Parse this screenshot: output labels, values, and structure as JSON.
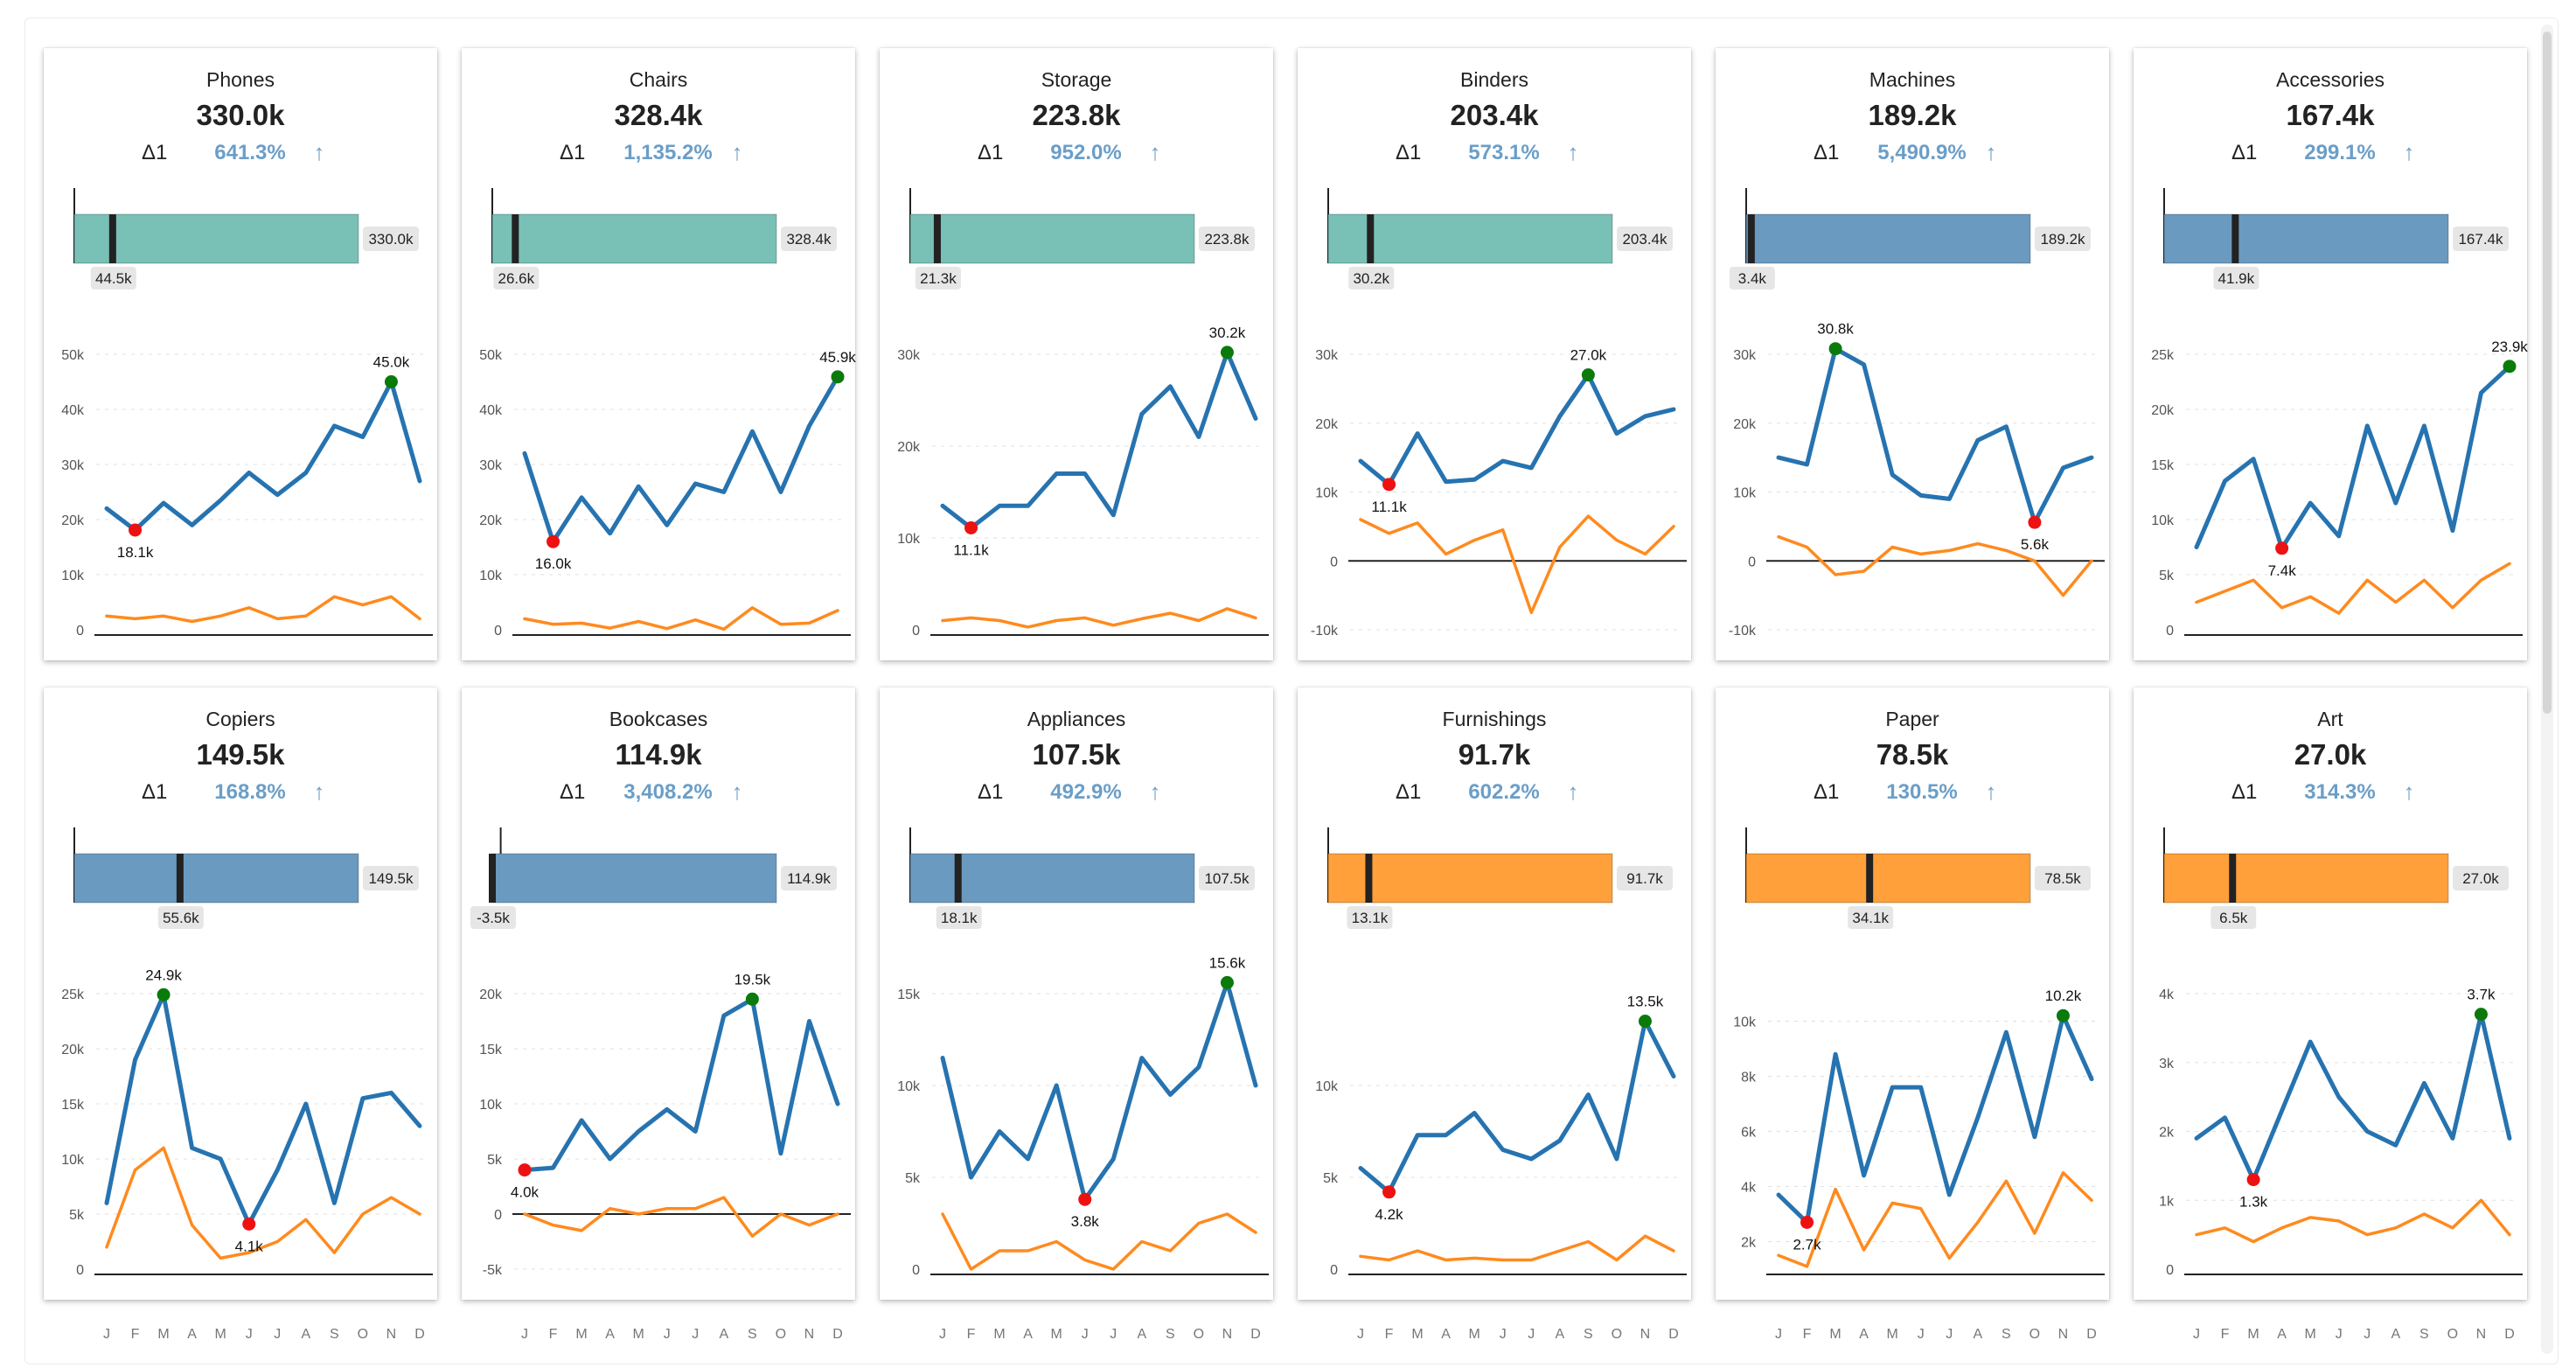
{
  "colors": {
    "teal": "#79c0b6",
    "blue": "#6b9ac0",
    "orange": "#ffa03a",
    "line_main": "#2673b0",
    "line_secondary": "#ff8a1e",
    "max_marker": "#0a7a0a",
    "min_marker": "#ee1111",
    "delta_text": "#6a9ec8"
  },
  "months": [
    "J",
    "F",
    "M",
    "A",
    "M",
    "J",
    "J",
    "A",
    "S",
    "O",
    "N",
    "D"
  ],
  "delta_label": "Δ1",
  "arrow_icon": "arrow-up-icon",
  "chart_data": [
    {
      "type": "line",
      "title": "Phones",
      "value": "330.0k",
      "delta_pct": "641.3%",
      "bar": {
        "color": "teal",
        "start": 0,
        "end": 330.0,
        "end_label": "330.0k",
        "marker": 44.5,
        "marker_label": "44.5k"
      },
      "ylim": [
        0,
        50
      ],
      "yticks": [
        0,
        10,
        20,
        30,
        40,
        50
      ],
      "ytick_labels": [
        "0",
        "10k",
        "20k",
        "30k",
        "40k",
        "50k"
      ],
      "series": [
        {
          "values": [
            22,
            18.1,
            23,
            19,
            23.5,
            28.5,
            24.5,
            28.5,
            37,
            35,
            45.0,
            27
          ]
        },
        {
          "values": [
            2.5,
            2,
            2.5,
            1.5,
            2.5,
            4,
            2,
            2.5,
            6,
            4.5,
            6,
            2
          ]
        }
      ],
      "max": {
        "index": 10,
        "label": "45.0k"
      },
      "min": {
        "index": 1,
        "label": "18.1k"
      }
    },
    {
      "type": "line",
      "title": "Chairs",
      "value": "328.4k",
      "delta_pct": "1,135.2%",
      "bar": {
        "color": "teal",
        "start": 0,
        "end": 328.4,
        "end_label": "328.4k",
        "marker": 26.6,
        "marker_label": "26.6k"
      },
      "ylim": [
        0,
        50
      ],
      "yticks": [
        0,
        10,
        20,
        30,
        40,
        50
      ],
      "ytick_labels": [
        "0",
        "10k",
        "20k",
        "30k",
        "40k",
        "50k"
      ],
      "series": [
        {
          "values": [
            32,
            16.0,
            24,
            17.5,
            26,
            19,
            26.5,
            25,
            36,
            25,
            37,
            45.9
          ]
        },
        {
          "values": [
            2,
            1,
            1.2,
            0.3,
            1.5,
            0.2,
            1.8,
            0.1,
            4,
            1,
            1.2,
            3.5
          ]
        }
      ],
      "max": {
        "index": 11,
        "label": "45.9k"
      },
      "min": {
        "index": 1,
        "label": "16.0k"
      }
    },
    {
      "type": "line",
      "title": "Storage",
      "value": "223.8k",
      "delta_pct": "952.0%",
      "bar": {
        "color": "teal",
        "start": 0,
        "end": 223.8,
        "end_label": "223.8k",
        "marker": 21.3,
        "marker_label": "21.3k"
      },
      "ylim": [
        0,
        30
      ],
      "yticks": [
        0,
        10,
        20,
        30
      ],
      "ytick_labels": [
        "0",
        "10k",
        "20k",
        "30k"
      ],
      "series": [
        {
          "values": [
            13.5,
            11.1,
            13.5,
            13.5,
            17,
            17,
            12.5,
            23.5,
            26.5,
            21,
            30.2,
            23
          ]
        },
        {
          "values": [
            1,
            1.3,
            1,
            0.3,
            1,
            1.3,
            0.5,
            1.2,
            1.8,
            1,
            2.3,
            1.3
          ]
        }
      ],
      "max": {
        "index": 10,
        "label": "30.2k"
      },
      "min": {
        "index": 1,
        "label": "11.1k"
      }
    },
    {
      "type": "line",
      "title": "Binders",
      "value": "203.4k",
      "delta_pct": "573.1%",
      "bar": {
        "color": "teal",
        "start": 0,
        "end": 203.4,
        "end_label": "203.4k",
        "marker": 30.2,
        "marker_label": "30.2k"
      },
      "ylim": [
        -10,
        30
      ],
      "yticks": [
        -10,
        0,
        10,
        20,
        30
      ],
      "ytick_labels": [
        "-10k",
        "0",
        "10k",
        "20k",
        "30k"
      ],
      "series": [
        {
          "values": [
            14.5,
            11.1,
            18.5,
            11.5,
            11.8,
            14.5,
            13.5,
            21,
            27.0,
            18.5,
            21,
            22
          ]
        },
        {
          "values": [
            6,
            4,
            5.5,
            1,
            3,
            4.5,
            -7.5,
            2,
            6.5,
            3,
            1,
            5
          ]
        }
      ],
      "max": {
        "index": 8,
        "label": "27.0k"
      },
      "min": {
        "index": 1,
        "label": "11.1k"
      }
    },
    {
      "type": "line",
      "title": "Machines",
      "value": "189.2k",
      "delta_pct": "5,490.9%",
      "bar": {
        "color": "blue",
        "start": 0,
        "end": 189.2,
        "end_label": "189.2k",
        "marker": 3.4,
        "marker_label": "3.4k"
      },
      "ylim": [
        -10,
        30
      ],
      "yticks": [
        -10,
        0,
        10,
        20,
        30
      ],
      "ytick_labels": [
        "-10k",
        "0",
        "10k",
        "20k",
        "30k"
      ],
      "series": [
        {
          "values": [
            15,
            14,
            30.8,
            28.5,
            12.5,
            9.5,
            9,
            17.5,
            19.5,
            5.6,
            13.5,
            15
          ]
        },
        {
          "values": [
            3.5,
            2,
            -2,
            -1.5,
            2,
            1,
            1.5,
            2.5,
            1.5,
            0,
            -5,
            0
          ]
        }
      ],
      "max": {
        "index": 2,
        "label": "30.8k"
      },
      "min": {
        "index": 9,
        "label": "5.6k"
      }
    },
    {
      "type": "line",
      "title": "Accessories",
      "value": "167.4k",
      "delta_pct": "299.1%",
      "bar": {
        "color": "blue",
        "start": 0,
        "end": 167.4,
        "end_label": "167.4k",
        "marker": 41.9,
        "marker_label": "41.9k"
      },
      "ylim": [
        0,
        25
      ],
      "yticks": [
        0,
        5,
        10,
        15,
        20,
        25
      ],
      "ytick_labels": [
        "0",
        "5k",
        "10k",
        "15k",
        "20k",
        "25k"
      ],
      "series": [
        {
          "values": [
            7.5,
            13.5,
            15.5,
            7.4,
            11.5,
            8.5,
            18.5,
            11.5,
            18.5,
            9,
            21.5,
            23.9
          ]
        },
        {
          "values": [
            2.5,
            3.5,
            4.5,
            2,
            3,
            1.5,
            4.5,
            2.5,
            4.5,
            2,
            4.5,
            6
          ]
        }
      ],
      "max": {
        "index": 11,
        "label": "23.9k"
      },
      "min": {
        "index": 3,
        "label": "7.4k"
      }
    },
    {
      "type": "line",
      "title": "Copiers",
      "value": "149.5k",
      "delta_pct": "168.8%",
      "bar": {
        "color": "blue",
        "start": 0,
        "end": 149.5,
        "end_label": "149.5k",
        "marker": 55.6,
        "marker_label": "55.6k"
      },
      "ylim": [
        0,
        25
      ],
      "yticks": [
        0,
        5,
        10,
        15,
        20,
        25
      ],
      "ytick_labels": [
        "0",
        "5k",
        "10k",
        "15k",
        "20k",
        "25k"
      ],
      "series": [
        {
          "values": [
            6,
            19,
            24.9,
            11,
            10,
            4.1,
            9,
            15,
            6,
            15.5,
            16,
            13
          ]
        },
        {
          "values": [
            2,
            9,
            11,
            4,
            1,
            1.5,
            2.5,
            4.5,
            1.5,
            5,
            6.5,
            5
          ]
        }
      ],
      "max": {
        "index": 2,
        "label": "24.9k"
      },
      "min": {
        "index": 5,
        "label": "4.1k"
      }
    },
    {
      "type": "line",
      "title": "Bookcases",
      "value": "114.9k",
      "delta_pct": "3,408.2%",
      "bar": {
        "color": "blue",
        "start": -3.5,
        "end": 114.9,
        "end_label": "114.9k",
        "marker": -3.5,
        "marker_label": "-3.5k"
      },
      "ylim": [
        -5,
        20
      ],
      "yticks": [
        -5,
        0,
        5,
        10,
        15,
        20
      ],
      "ytick_labels": [
        "-5k",
        "0",
        "5k",
        "10k",
        "15k",
        "20k"
      ],
      "series": [
        {
          "values": [
            4.0,
            4.2,
            8.5,
            5,
            7.5,
            9.5,
            7.5,
            18,
            19.5,
            5.5,
            17.5,
            10
          ]
        },
        {
          "values": [
            0,
            -1,
            -1.5,
            0.5,
            0,
            0.5,
            0.5,
            1.5,
            -2,
            0,
            -1,
            0
          ]
        }
      ],
      "max": {
        "index": 8,
        "label": "19.5k"
      },
      "min": {
        "index": 0,
        "label": "4.0k"
      }
    },
    {
      "type": "line",
      "title": "Appliances",
      "value": "107.5k",
      "delta_pct": "492.9%",
      "bar": {
        "color": "blue",
        "start": 0,
        "end": 107.5,
        "end_label": "107.5k",
        "marker": 18.1,
        "marker_label": "18.1k"
      },
      "ylim": [
        0,
        15
      ],
      "yticks": [
        0,
        5,
        10,
        15
      ],
      "ytick_labels": [
        "0",
        "5k",
        "10k",
        "15k"
      ],
      "series": [
        {
          "values": [
            11.5,
            5,
            7.5,
            6,
            10,
            3.8,
            6,
            11.5,
            9.5,
            11,
            15.6,
            10
          ]
        },
        {
          "values": [
            3,
            0,
            1,
            1,
            1.5,
            0.5,
            0,
            1.5,
            1,
            2.5,
            3,
            2
          ]
        }
      ],
      "max": {
        "index": 10,
        "label": "15.6k"
      },
      "min": {
        "index": 5,
        "label": "3.8k"
      }
    },
    {
      "type": "line",
      "title": "Furnishings",
      "value": "91.7k",
      "delta_pct": "602.2%",
      "bar": {
        "color": "orange",
        "start": 0,
        "end": 91.7,
        "end_label": "91.7k",
        "marker": 13.1,
        "marker_label": "13.1k"
      },
      "ylim": [
        0,
        15
      ],
      "yticks": [
        0,
        5,
        10
      ],
      "ytick_labels": [
        "0",
        "5k",
        "10k"
      ],
      "series": [
        {
          "values": [
            5.5,
            4.2,
            7.3,
            7.3,
            8.5,
            6.5,
            6,
            7,
            9.5,
            6,
            13.5,
            10.5
          ]
        },
        {
          "values": [
            0.7,
            0.5,
            1,
            0.5,
            0.6,
            0.5,
            0.5,
            1,
            1.5,
            0.5,
            1.8,
            1
          ]
        }
      ],
      "max": {
        "index": 10,
        "label": "13.5k"
      },
      "min": {
        "index": 1,
        "label": "4.2k"
      }
    },
    {
      "type": "line",
      "title": "Paper",
      "value": "78.5k",
      "delta_pct": "130.5%",
      "bar": {
        "color": "orange",
        "start": 0,
        "end": 78.5,
        "end_label": "78.5k",
        "marker": 34.1,
        "marker_label": "34.1k"
      },
      "ylim": [
        1,
        11
      ],
      "yticks": [
        2,
        4,
        6,
        8,
        10
      ],
      "ytick_labels": [
        "2k",
        "4k",
        "6k",
        "8k",
        "10k"
      ],
      "series": [
        {
          "values": [
            3.7,
            2.7,
            8.8,
            4.4,
            7.6,
            7.6,
            3.7,
            6.5,
            9.6,
            5.8,
            10.2,
            7.9
          ]
        },
        {
          "values": [
            1.5,
            1.1,
            3.9,
            1.7,
            3.4,
            3.2,
            1.4,
            2.7,
            4.2,
            2.3,
            4.5,
            3.5
          ]
        }
      ],
      "max": {
        "index": 10,
        "label": "10.2k"
      },
      "min": {
        "index": 1,
        "label": "2.7k"
      }
    },
    {
      "type": "line",
      "title": "Art",
      "value": "27.0k",
      "delta_pct": "314.3%",
      "bar": {
        "color": "orange",
        "start": 0,
        "end": 27.0,
        "end_label": "27.0k",
        "marker": 6.5,
        "marker_label": "6.5k"
      },
      "ylim": [
        0,
        4
      ],
      "yticks": [
        0,
        1,
        2,
        3,
        4
      ],
      "ytick_labels": [
        "0",
        "1k",
        "2k",
        "3k",
        "4k"
      ],
      "series": [
        {
          "values": [
            1.9,
            2.2,
            1.3,
            2.3,
            3.3,
            2.5,
            2,
            1.8,
            2.7,
            1.9,
            3.7,
            1.9
          ]
        },
        {
          "values": [
            0.5,
            0.6,
            0.4,
            0.6,
            0.75,
            0.7,
            0.5,
            0.6,
            0.8,
            0.6,
            1,
            0.5
          ]
        }
      ],
      "max": {
        "index": 10,
        "label": "3.7k"
      },
      "min": {
        "index": 2,
        "label": "1.3k"
      }
    }
  ]
}
